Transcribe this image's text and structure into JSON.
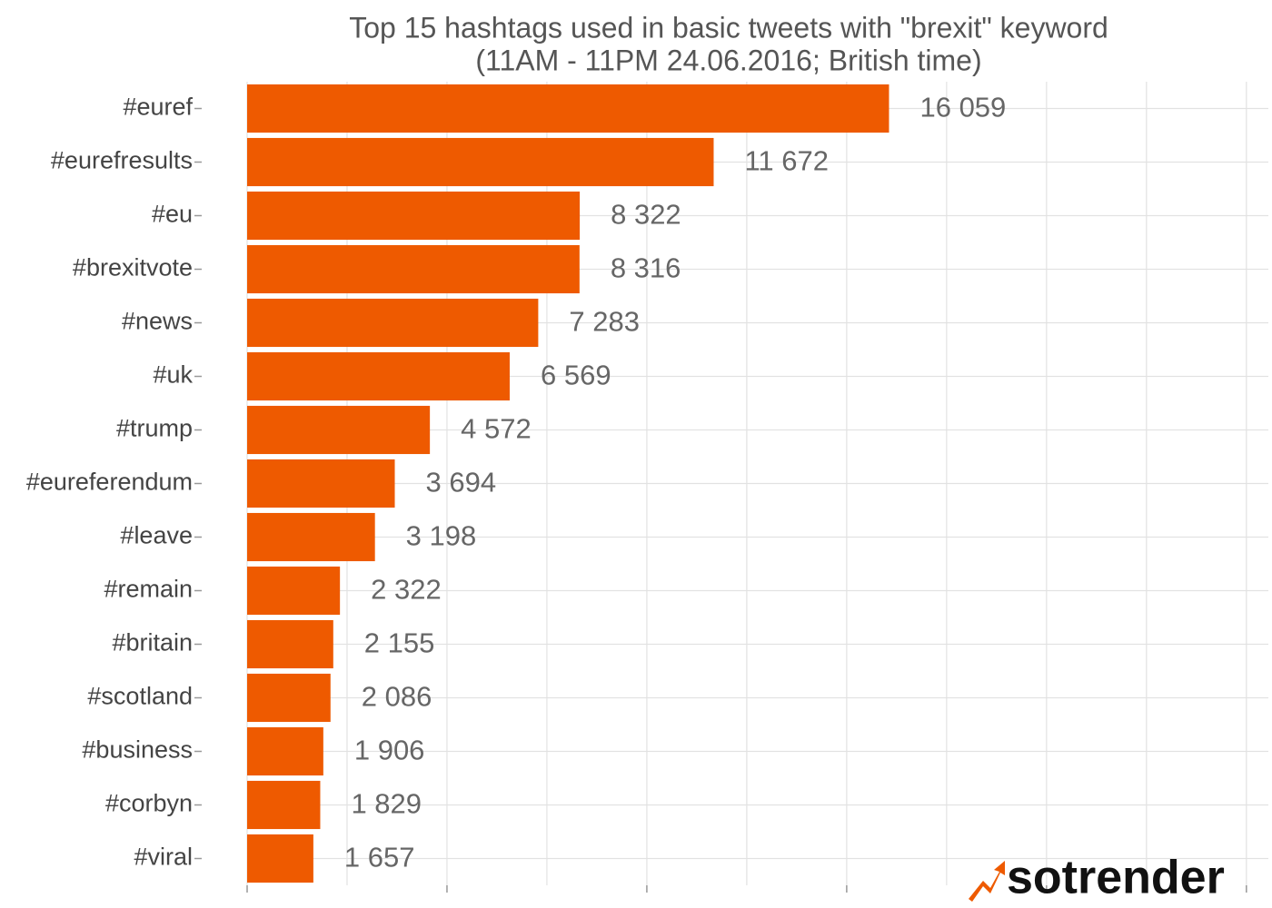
{
  "chart_data": {
    "type": "hbar",
    "title": [
      "Top 15 hashtags used in basic tweets with \"brexit\" keyword",
      "(11AM - 11PM 24.06.2016; British time)"
    ],
    "categories": [
      "#euref",
      "#eurefresults",
      "#eu",
      "#brexitvote",
      "#news",
      "#uk",
      "#trump",
      "#eureferendum",
      "#leave",
      "#remain",
      "#britain",
      "#scotland",
      "#business",
      "#corbyn",
      "#viral"
    ],
    "values": [
      16059,
      11672,
      8322,
      8316,
      7283,
      6569,
      4572,
      3694,
      3198,
      2322,
      2155,
      2086,
      1906,
      1829,
      1657
    ],
    "value_labels": [
      "16 059",
      "11 672",
      "8 322",
      "8 316",
      "7 283",
      "6 569",
      "4 572",
      "3 694",
      "3 198",
      "2 322",
      "2 155",
      "2 086",
      "1 906",
      "1 829",
      "1 657"
    ],
    "color": "#ee5a00",
    "xlim": [
      0,
      25550
    ],
    "x_gridlines": [
      0,
      2500,
      5000,
      7500,
      10000,
      12500,
      15000,
      17500,
      20000,
      22500,
      25000
    ],
    "grid": true,
    "logo": "sotrender"
  }
}
